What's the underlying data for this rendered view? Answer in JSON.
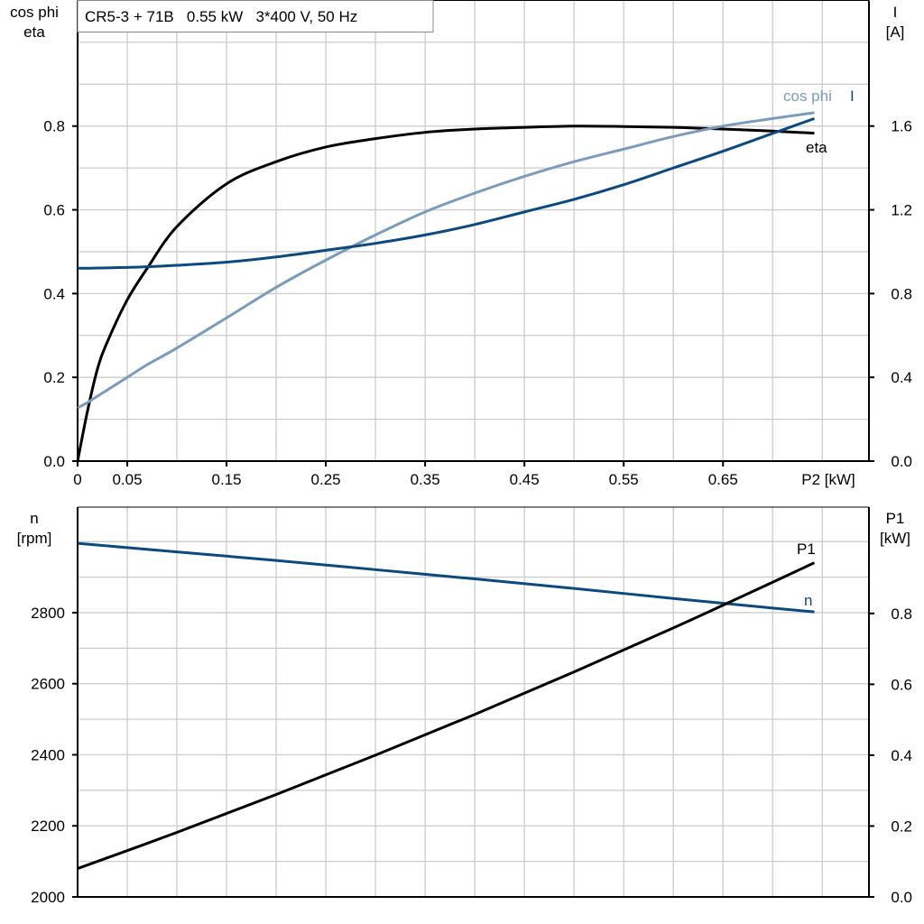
{
  "title": "CR5-3 + 71B   0.55 kW   3*400 V, 50 Hz",
  "colors": {
    "eta": "#000000",
    "cos_phi": "#7a9cbc",
    "I": "#0b4a80",
    "n": "#0b4a80",
    "P1": "#000000",
    "grid": "#cccccc"
  },
  "chart_data": [
    {
      "type": "line",
      "grid": true,
      "xlabel": "P2 [kW]",
      "xlim": [
        0,
        0.797
      ],
      "xticks": [
        0,
        0.05,
        0.15,
        0.25,
        0.35,
        0.45,
        0.55,
        0.65
      ],
      "xtick_labels": [
        "0",
        "0.05",
        "0.15",
        "0.25",
        "0.35",
        "0.45",
        "0.55",
        "0.65"
      ],
      "ylabel_left": [
        "cos phi",
        "eta"
      ],
      "ylim_left": [
        0,
        1.1
      ],
      "yticks_left": [
        "0.0",
        "0.2",
        "0.4",
        "0.6",
        "0.8"
      ],
      "ylabel_right": [
        "I",
        "[A]"
      ],
      "ylim_right": [
        0,
        2.2
      ],
      "yticks_right": [
        "0.0",
        "0.4",
        "0.8",
        "1.2",
        "1.6"
      ],
      "x": [
        0,
        0.01,
        0.02,
        0.03,
        0.05,
        0.07,
        0.1,
        0.15,
        0.2,
        0.25,
        0.3,
        0.35,
        0.4,
        0.45,
        0.5,
        0.55,
        0.6,
        0.65,
        0.7,
        0.742
      ],
      "series": [
        {
          "name": "eta",
          "axis": "left",
          "color": "#000000",
          "values": [
            0,
            0.12,
            0.22,
            0.285,
            0.385,
            0.46,
            0.56,
            0.662,
            0.715,
            0.75,
            0.77,
            0.785,
            0.793,
            0.797,
            0.8,
            0.799,
            0.797,
            0.793,
            0.788,
            0.783
          ]
        },
        {
          "name": "cos phi",
          "axis": "left",
          "color": "#7a9cbc",
          "values": [
            0.127,
            0.14,
            0.155,
            0.17,
            0.2,
            0.23,
            0.27,
            0.342,
            0.415,
            0.48,
            0.54,
            0.595,
            0.64,
            0.68,
            0.715,
            0.745,
            0.775,
            0.8,
            0.818,
            0.832
          ]
        },
        {
          "name": "I",
          "axis": "right",
          "color": "#0b4a80",
          "values": [
            0.921,
            0.921,
            0.922,
            0.923,
            0.925,
            0.928,
            0.935,
            0.95,
            0.975,
            1.007,
            1.04,
            1.08,
            1.13,
            1.19,
            1.25,
            1.32,
            1.4,
            1.48,
            1.565,
            1.636
          ]
        }
      ]
    },
    {
      "type": "line",
      "grid": true,
      "xlim": [
        0,
        0.797
      ],
      "ylabel_left": [
        "n",
        "[rpm]"
      ],
      "ylim_left": [
        2000,
        3097
      ],
      "yticks_left": [
        "2000",
        "2200",
        "2400",
        "2600",
        "2800"
      ],
      "ylabel_right": [
        "P1",
        "[kW]"
      ],
      "ylim_right": [
        0,
        1.1
      ],
      "yticks_right": [
        "0.0",
        "0.2",
        "0.4",
        "0.6",
        "0.8"
      ],
      "x": [
        0,
        0.1,
        0.2,
        0.3,
        0.4,
        0.5,
        0.6,
        0.7,
        0.742
      ],
      "series": [
        {
          "name": "n",
          "axis": "left",
          "color": "#0b4a80",
          "values": [
            2995,
            2971,
            2947,
            2921,
            2895,
            2868,
            2840,
            2813,
            2802
          ]
        },
        {
          "name": "P1",
          "axis": "right",
          "color": "#000000",
          "values": [
            0.08,
            0.182,
            0.289,
            0.4,
            0.515,
            0.635,
            0.759,
            0.888,
            0.943
          ]
        }
      ]
    }
  ]
}
